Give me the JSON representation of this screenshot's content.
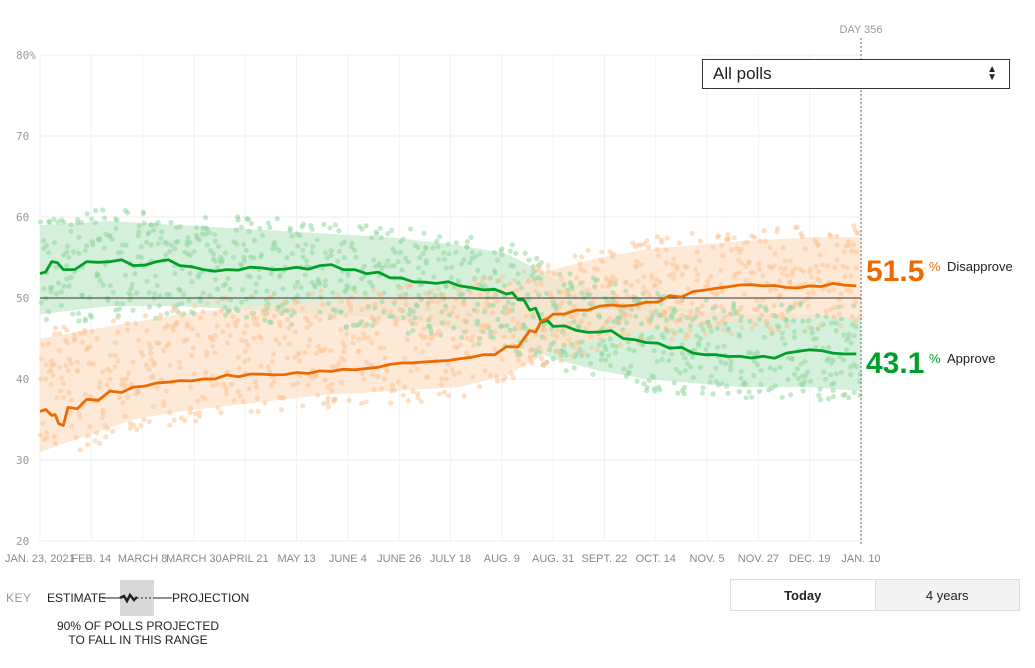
{
  "controls": {
    "poll_filter": {
      "selected": "All polls"
    },
    "timespan": {
      "options": [
        "Today",
        "4 years"
      ],
      "selected": "Today"
    }
  },
  "key": {
    "title": "KEY",
    "estimate": "ESTIMATE",
    "projection": "PROJECTION",
    "range_note": "90% OF POLLS PROJECTED TO FALL IN THIS RANGE"
  },
  "marker": {
    "label": "DAY 356"
  },
  "chart_data": {
    "type": "line",
    "ylim": [
      20,
      80
    ],
    "y_ticks": [
      20,
      30,
      40,
      50,
      60,
      70,
      80
    ],
    "y_tick_labels": [
      "20",
      "30",
      "40",
      "50",
      "60",
      "70",
      "80%"
    ],
    "reference_line": 50,
    "x_domain_days": [
      0,
      352
    ],
    "x_ticks": [
      {
        "day": 0,
        "label": "JAN. 23, 2021"
      },
      {
        "day": 22,
        "label": "FEB. 14"
      },
      {
        "day": 44,
        "label": "MARCH 8"
      },
      {
        "day": 66,
        "label": "MARCH 30"
      },
      {
        "day": 88,
        "label": "APRIL 21"
      },
      {
        "day": 110,
        "label": "MAY 13"
      },
      {
        "day": 132,
        "label": "JUNE 4"
      },
      {
        "day": 154,
        "label": "JUNE 26"
      },
      {
        "day": 176,
        "label": "JULY 18"
      },
      {
        "day": 198,
        "label": "AUG. 9"
      },
      {
        "day": 220,
        "label": "AUG. 31"
      },
      {
        "day": 242,
        "label": "SEPT. 22"
      },
      {
        "day": 264,
        "label": "OCT. 14"
      },
      {
        "day": 286,
        "label": "NOV. 5"
      },
      {
        "day": 308,
        "label": "NOV. 27"
      },
      {
        "day": 330,
        "label": "DEC. 19"
      },
      {
        "day": 352,
        "label": "JAN. 10"
      }
    ],
    "grid": true,
    "series": [
      {
        "name": "Approve",
        "color": "#009f29",
        "band_color": "#c7ebcd",
        "dot_color": "#8fd79e",
        "current_value": "43.1",
        "points": [
          [
            0,
            53.0
          ],
          [
            5,
            54.5
          ],
          [
            10,
            53.5
          ],
          [
            20,
            54.5
          ],
          [
            30,
            54.5
          ],
          [
            40,
            54.0
          ],
          [
            50,
            54.5
          ],
          [
            60,
            54.0
          ],
          [
            70,
            53.5
          ],
          [
            80,
            53.5
          ],
          [
            90,
            53.8
          ],
          [
            100,
            53.5
          ],
          [
            110,
            53.8
          ],
          [
            120,
            54.0
          ],
          [
            130,
            53.5
          ],
          [
            140,
            53.0
          ],
          [
            150,
            52.5
          ],
          [
            160,
            52.0
          ],
          [
            170,
            51.8
          ],
          [
            180,
            51.5
          ],
          [
            190,
            51.0
          ],
          [
            200,
            50.5
          ],
          [
            205,
            49.8
          ],
          [
            210,
            48.5
          ],
          [
            215,
            47.0
          ],
          [
            220,
            46.5
          ],
          [
            230,
            46.0
          ],
          [
            240,
            45.8
          ],
          [
            250,
            45.0
          ],
          [
            260,
            44.5
          ],
          [
            270,
            43.8
          ],
          [
            280,
            43.2
          ],
          [
            290,
            43.0
          ],
          [
            300,
            42.8
          ],
          [
            310,
            42.8
          ],
          [
            320,
            43.2
          ],
          [
            330,
            43.6
          ],
          [
            340,
            43.2
          ],
          [
            350,
            43.1
          ]
        ],
        "band": [
          [
            0,
            48,
            59
          ],
          [
            30,
            49,
            59.5
          ],
          [
            60,
            49,
            59
          ],
          [
            90,
            48.5,
            58.5
          ],
          [
            120,
            48,
            58
          ],
          [
            150,
            47.5,
            57.5
          ],
          [
            180,
            46,
            56.5
          ],
          [
            200,
            45,
            55.5
          ],
          [
            220,
            42.5,
            52.5
          ],
          [
            240,
            41,
            51
          ],
          [
            260,
            40,
            49.5
          ],
          [
            280,
            39.5,
            48.5
          ],
          [
            300,
            39,
            48
          ],
          [
            330,
            39,
            48
          ],
          [
            352,
            38.5,
            47.5
          ]
        ]
      },
      {
        "name": "Disapprove",
        "color": "#ed6a00",
        "band_color": "#fde1c9",
        "dot_color": "#fcc494",
        "current_value": "51.5",
        "points": [
          [
            0,
            36.0
          ],
          [
            5,
            35.5
          ],
          [
            8,
            34.5
          ],
          [
            12,
            36.5
          ],
          [
            20,
            37.5
          ],
          [
            30,
            38.5
          ],
          [
            40,
            39.0
          ],
          [
            50,
            39.5
          ],
          [
            60,
            39.8
          ],
          [
            70,
            40.0
          ],
          [
            80,
            40.5
          ],
          [
            90,
            40.6
          ],
          [
            100,
            40.5
          ],
          [
            110,
            40.8
          ],
          [
            120,
            41.0
          ],
          [
            130,
            41.2
          ],
          [
            140,
            41.3
          ],
          [
            150,
            41.8
          ],
          [
            160,
            42.0
          ],
          [
            170,
            42.2
          ],
          [
            180,
            42.5
          ],
          [
            190,
            43.0
          ],
          [
            200,
            44.0
          ],
          [
            210,
            46.0
          ],
          [
            215,
            47.2
          ],
          [
            220,
            48.0
          ],
          [
            230,
            48.5
          ],
          [
            240,
            49.0
          ],
          [
            250,
            49.0
          ],
          [
            260,
            49.5
          ],
          [
            270,
            50.3
          ],
          [
            280,
            50.8
          ],
          [
            290,
            51.2
          ],
          [
            300,
            51.6
          ],
          [
            310,
            51.5
          ],
          [
            320,
            51.3
          ],
          [
            330,
            51.5
          ],
          [
            340,
            51.8
          ],
          [
            350,
            51.5
          ]
        ],
        "band": [
          [
            0,
            31,
            45
          ],
          [
            20,
            33,
            46
          ],
          [
            40,
            35,
            47
          ],
          [
            60,
            36,
            48
          ],
          [
            90,
            37,
            49
          ],
          [
            120,
            38,
            49.5
          ],
          [
            150,
            38.5,
            50
          ],
          [
            180,
            39,
            50.5
          ],
          [
            200,
            40.5,
            51.5
          ],
          [
            220,
            43.5,
            53.5
          ],
          [
            240,
            45,
            55
          ],
          [
            260,
            46,
            56
          ],
          [
            280,
            46.5,
            56.5
          ],
          [
            300,
            47,
            57
          ],
          [
            330,
            47.5,
            57.5
          ],
          [
            352,
            47.5,
            57.5
          ]
        ]
      }
    ]
  }
}
